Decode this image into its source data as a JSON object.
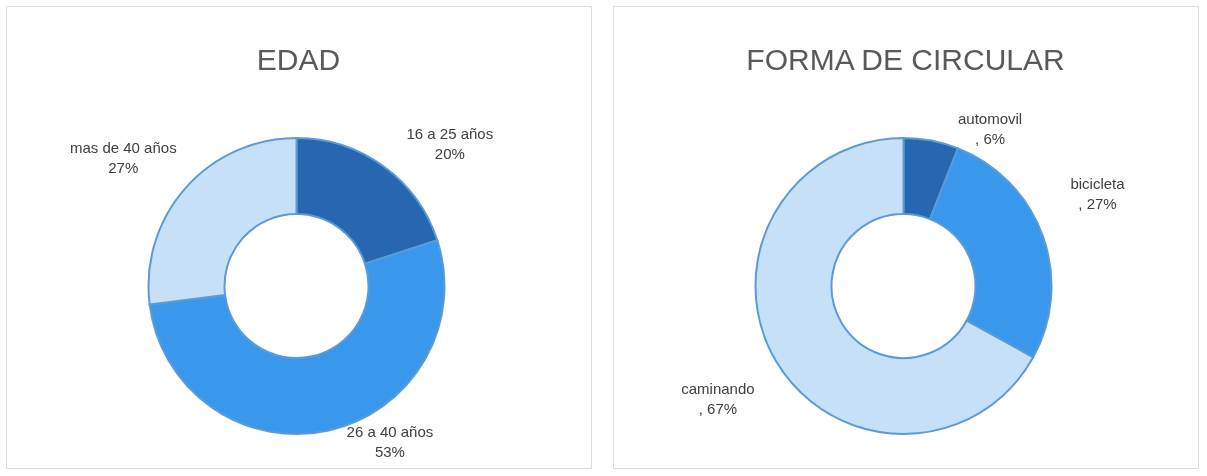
{
  "chart_data": [
    {
      "type": "donut",
      "title": "EDAD",
      "categories": [
        "16 a 25 años",
        "26 a 40 años",
        "mas de 40 años"
      ],
      "values": [
        20,
        53,
        27
      ],
      "colors": [
        "#2767b2",
        "#3a98ec",
        "#c6e0f8"
      ],
      "value_labels": [
        "20%",
        "53%",
        "27%"
      ]
    },
    {
      "type": "donut",
      "title": "FORMA DE CIRCULAR",
      "categories": [
        "automovil",
        "bicicleta",
        "caminando"
      ],
      "values": [
        6,
        27,
        67
      ],
      "colors": [
        "#2767b2",
        "#3a98ec",
        "#c6e0f8"
      ],
      "value_labels": [
        ", 6%",
        ", 27%",
        ", 67%"
      ]
    }
  ]
}
